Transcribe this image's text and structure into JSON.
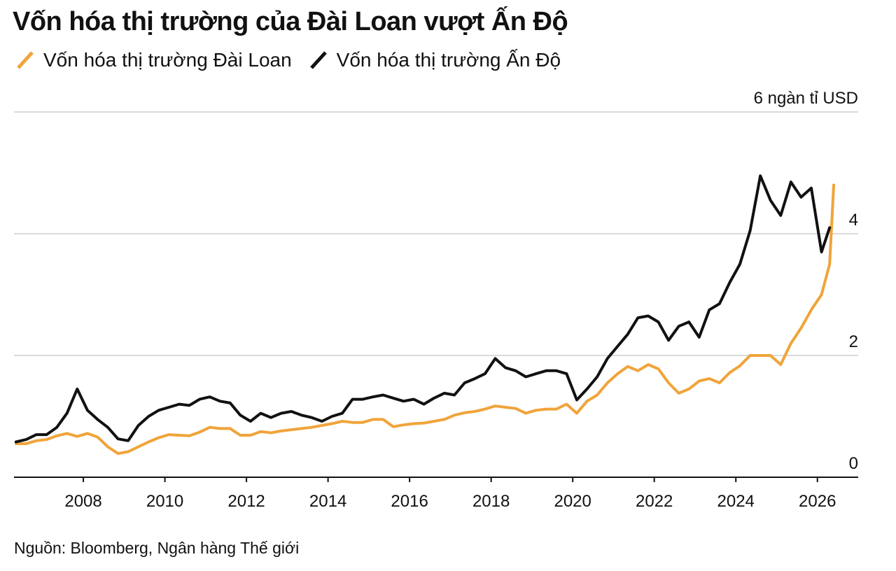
{
  "header": {
    "title": "Vốn hóa thị trường của Đài Loan vượt Ấn Độ"
  },
  "legend": [
    {
      "label": "Vốn hóa thị trường Đài Loan",
      "color": "#f0a43a",
      "icon": "line-swatch"
    },
    {
      "label": "Vốn hóa thị trường Ấn Độ",
      "color": "#111111",
      "icon": "line-swatch"
    }
  ],
  "footer": {
    "source": "Nguồn: Bloomberg, Ngân hàng Thế giới"
  },
  "chart_data": {
    "type": "line",
    "title": "Vốn hóa thị trường của Đài Loan vượt Ấn Độ",
    "ylabel": "6 ngàn tỉ USD",
    "xlabel": "",
    "xlim": [
      2006.3,
      2027
    ],
    "ylim": [
      0,
      6
    ],
    "y_ticks": [
      0,
      2,
      4,
      6
    ],
    "y_tick_labels": [
      "0",
      "2",
      "4",
      "6 ngàn tỉ USD"
    ],
    "x_ticks": [
      2008,
      2010,
      2012,
      2014,
      2016,
      2018,
      2020,
      2022,
      2024,
      2026
    ],
    "x_tick_labels": [
      "2008",
      "2010",
      "2012",
      "2014",
      "2016",
      "2018",
      "2020",
      "2022",
      "2024",
      "2026"
    ],
    "grid": "horizontal",
    "series": [
      {
        "name": "Vốn hóa thị trường Đài Loan",
        "color": "#f0a43a",
        "points": [
          [
            2006.35,
            0.55
          ],
          [
            2006.6,
            0.55
          ],
          [
            2006.85,
            0.6
          ],
          [
            2007.1,
            0.62
          ],
          [
            2007.35,
            0.68
          ],
          [
            2007.6,
            0.72
          ],
          [
            2007.85,
            0.67
          ],
          [
            2008.1,
            0.72
          ],
          [
            2008.35,
            0.66
          ],
          [
            2008.6,
            0.5
          ],
          [
            2008.85,
            0.39
          ],
          [
            2009.1,
            0.42
          ],
          [
            2009.35,
            0.5
          ],
          [
            2009.6,
            0.58
          ],
          [
            2009.85,
            0.65
          ],
          [
            2010.1,
            0.7
          ],
          [
            2010.35,
            0.69
          ],
          [
            2010.6,
            0.68
          ],
          [
            2010.85,
            0.74
          ],
          [
            2011.1,
            0.82
          ],
          [
            2011.35,
            0.8
          ],
          [
            2011.6,
            0.8
          ],
          [
            2011.85,
            0.69
          ],
          [
            2012.1,
            0.69
          ],
          [
            2012.35,
            0.75
          ],
          [
            2012.6,
            0.73
          ],
          [
            2012.85,
            0.76
          ],
          [
            2013.1,
            0.78
          ],
          [
            2013.35,
            0.8
          ],
          [
            2013.6,
            0.82
          ],
          [
            2013.85,
            0.85
          ],
          [
            2014.1,
            0.88
          ],
          [
            2014.35,
            0.92
          ],
          [
            2014.6,
            0.9
          ],
          [
            2014.85,
            0.9
          ],
          [
            2015.1,
            0.95
          ],
          [
            2015.35,
            0.95
          ],
          [
            2015.6,
            0.83
          ],
          [
            2015.85,
            0.86
          ],
          [
            2016.1,
            0.88
          ],
          [
            2016.35,
            0.89
          ],
          [
            2016.6,
            0.92
          ],
          [
            2016.85,
            0.95
          ],
          [
            2017.1,
            1.02
          ],
          [
            2017.35,
            1.06
          ],
          [
            2017.6,
            1.08
          ],
          [
            2017.85,
            1.12
          ],
          [
            2018.1,
            1.17
          ],
          [
            2018.35,
            1.15
          ],
          [
            2018.6,
            1.13
          ],
          [
            2018.85,
            1.05
          ],
          [
            2019.1,
            1.1
          ],
          [
            2019.35,
            1.12
          ],
          [
            2019.6,
            1.12
          ],
          [
            2019.85,
            1.2
          ],
          [
            2020.1,
            1.05
          ],
          [
            2020.35,
            1.25
          ],
          [
            2020.6,
            1.35
          ],
          [
            2020.85,
            1.55
          ],
          [
            2021.1,
            1.7
          ],
          [
            2021.35,
            1.82
          ],
          [
            2021.6,
            1.75
          ],
          [
            2021.85,
            1.85
          ],
          [
            2022.1,
            1.78
          ],
          [
            2022.35,
            1.55
          ],
          [
            2022.6,
            1.38
          ],
          [
            2022.85,
            1.45
          ],
          [
            2023.1,
            1.58
          ],
          [
            2023.35,
            1.62
          ],
          [
            2023.6,
            1.55
          ],
          [
            2023.85,
            1.72
          ],
          [
            2024.1,
            1.83
          ],
          [
            2024.35,
            2.0
          ],
          [
            2024.6,
            2.0
          ],
          [
            2024.85,
            2.0
          ],
          [
            2025.1,
            1.85
          ],
          [
            2025.35,
            2.2
          ],
          [
            2025.6,
            2.45
          ],
          [
            2025.85,
            2.75
          ],
          [
            2026.1,
            3.0
          ],
          [
            2026.3,
            3.5
          ],
          [
            2026.4,
            4.8
          ]
        ]
      },
      {
        "name": "Vốn hóa thị trường Ấn Độ",
        "color": "#111111",
        "points": [
          [
            2006.35,
            0.58
          ],
          [
            2006.6,
            0.62
          ],
          [
            2006.85,
            0.7
          ],
          [
            2007.1,
            0.7
          ],
          [
            2007.35,
            0.82
          ],
          [
            2007.6,
            1.05
          ],
          [
            2007.85,
            1.45
          ],
          [
            2008.1,
            1.1
          ],
          [
            2008.35,
            0.95
          ],
          [
            2008.6,
            0.82
          ],
          [
            2008.85,
            0.63
          ],
          [
            2009.1,
            0.6
          ],
          [
            2009.35,
            0.85
          ],
          [
            2009.6,
            1.0
          ],
          [
            2009.85,
            1.1
          ],
          [
            2010.1,
            1.15
          ],
          [
            2010.35,
            1.2
          ],
          [
            2010.6,
            1.18
          ],
          [
            2010.85,
            1.28
          ],
          [
            2011.1,
            1.32
          ],
          [
            2011.35,
            1.25
          ],
          [
            2011.6,
            1.22
          ],
          [
            2011.85,
            1.02
          ],
          [
            2012.1,
            0.92
          ],
          [
            2012.35,
            1.05
          ],
          [
            2012.6,
            0.98
          ],
          [
            2012.85,
            1.05
          ],
          [
            2013.1,
            1.08
          ],
          [
            2013.35,
            1.02
          ],
          [
            2013.6,
            0.98
          ],
          [
            2013.85,
            0.92
          ],
          [
            2014.1,
            1.0
          ],
          [
            2014.35,
            1.05
          ],
          [
            2014.6,
            1.28
          ],
          [
            2014.85,
            1.28
          ],
          [
            2015.1,
            1.32
          ],
          [
            2015.35,
            1.35
          ],
          [
            2015.6,
            1.3
          ],
          [
            2015.85,
            1.25
          ],
          [
            2016.1,
            1.28
          ],
          [
            2016.35,
            1.2
          ],
          [
            2016.6,
            1.3
          ],
          [
            2016.85,
            1.38
          ],
          [
            2017.1,
            1.35
          ],
          [
            2017.35,
            1.55
          ],
          [
            2017.6,
            1.62
          ],
          [
            2017.85,
            1.7
          ],
          [
            2018.1,
            1.95
          ],
          [
            2018.35,
            1.8
          ],
          [
            2018.6,
            1.75
          ],
          [
            2018.85,
            1.65
          ],
          [
            2019.1,
            1.7
          ],
          [
            2019.35,
            1.75
          ],
          [
            2019.6,
            1.75
          ],
          [
            2019.85,
            1.7
          ],
          [
            2020.1,
            1.27
          ],
          [
            2020.35,
            1.45
          ],
          [
            2020.6,
            1.65
          ],
          [
            2020.85,
            1.95
          ],
          [
            2021.1,
            2.15
          ],
          [
            2021.35,
            2.35
          ],
          [
            2021.6,
            2.62
          ],
          [
            2021.85,
            2.65
          ],
          [
            2022.1,
            2.55
          ],
          [
            2022.35,
            2.25
          ],
          [
            2022.6,
            2.48
          ],
          [
            2022.85,
            2.55
          ],
          [
            2023.1,
            2.3
          ],
          [
            2023.35,
            2.75
          ],
          [
            2023.6,
            2.85
          ],
          [
            2023.85,
            3.2
          ],
          [
            2024.1,
            3.5
          ],
          [
            2024.35,
            4.05
          ],
          [
            2024.6,
            4.95
          ],
          [
            2024.85,
            4.55
          ],
          [
            2025.1,
            4.3
          ],
          [
            2025.35,
            4.85
          ],
          [
            2025.6,
            4.6
          ],
          [
            2025.85,
            4.75
          ],
          [
            2026.1,
            3.7
          ],
          [
            2026.3,
            4.1
          ]
        ]
      }
    ]
  }
}
